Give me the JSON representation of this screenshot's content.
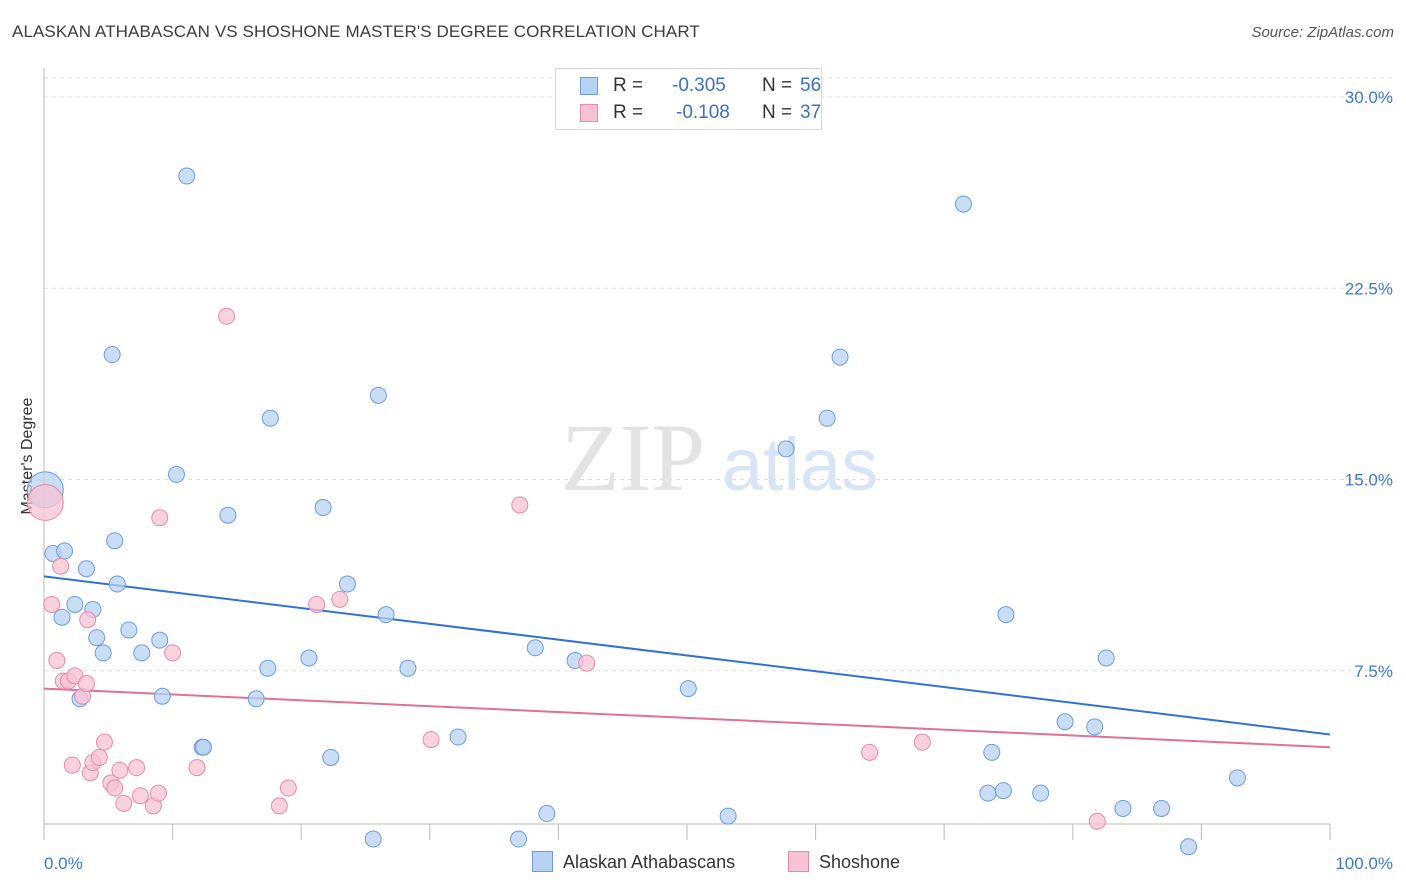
{
  "title": "ALASKAN ATHABASCAN VS SHOSHONE MASTER'S DEGREE CORRELATION CHART",
  "source": "Source: ZipAtlas.com",
  "watermark": {
    "zip": "ZIP",
    "atlas": "atlas"
  },
  "legend": {
    "r_label": "R =",
    "n_label": "N =",
    "rows": [
      {
        "r": "-0.305",
        "n": "56",
        "color": "#a9c8f0",
        "border": "#6d9be0"
      },
      {
        "r": "-0.108",
        "n": "37",
        "color": "#f8c2d3",
        "border": "#e78aa8"
      }
    ]
  },
  "colors": {
    "blue_fill": "#b7d1f2",
    "blue_stroke": "#6d9be0",
    "blue_line": "#2f72d6",
    "pink_fill": "#f7c3d3",
    "pink_stroke": "#e78aa8",
    "pink_line": "#e0709a",
    "tick_label": "#3a78d4",
    "grid": "#dddddd"
  },
  "chart_data": {
    "type": "scatter",
    "title": "ALASKAN ATHABASCAN VS SHOSHONE MASTER'S DEGREE CORRELATION CHART",
    "xlabel": "",
    "ylabel": "Master's Degree",
    "xlim": [
      0,
      100
    ],
    "ylim": [
      0,
      30
    ],
    "x_tick_labels": [
      "0.0%",
      "100.0%"
    ],
    "y_ticks": [
      7.5,
      15.0,
      22.5,
      30.0
    ],
    "y_tick_labels": [
      "7.5%",
      "15.0%",
      "22.5%",
      "30.0%"
    ],
    "grid": "horizontal dashed",
    "legend_position": "bottom-center",
    "series": [
      {
        "name": "Alaskan Athabascans",
        "trend": {
          "x": [
            0,
            100
          ],
          "y": [
            11.2,
            5.0
          ]
        },
        "points": [
          [
            0.1,
            14.6
          ],
          [
            0.7,
            12.1
          ],
          [
            1.6,
            12.2
          ],
          [
            3.3,
            11.5
          ],
          [
            1.4,
            9.6
          ],
          [
            2.4,
            10.1
          ],
          [
            3.8,
            9.9
          ],
          [
            4.1,
            8.8
          ],
          [
            4.6,
            8.2
          ],
          [
            2.8,
            6.4
          ],
          [
            5.7,
            10.9
          ],
          [
            5.5,
            12.6
          ],
          [
            5.3,
            19.9
          ],
          [
            6.6,
            9.1
          ],
          [
            7.6,
            8.2
          ],
          [
            9.0,
            8.7
          ],
          [
            9.2,
            6.5
          ],
          [
            11.1,
            26.9
          ],
          [
            10.3,
            15.2
          ],
          [
            12.3,
            4.5
          ],
          [
            12.4,
            4.5
          ],
          [
            14.3,
            13.6
          ],
          [
            16.5,
            6.4
          ],
          [
            17.4,
            7.6
          ],
          [
            17.6,
            17.4
          ],
          [
            20.6,
            8.0
          ],
          [
            21.7,
            13.9
          ],
          [
            22.3,
            4.1
          ],
          [
            23.6,
            10.9
          ],
          [
            25.6,
            0.9
          ],
          [
            26.0,
            18.3
          ],
          [
            26.6,
            9.7
          ],
          [
            28.3,
            7.6
          ],
          [
            32.2,
            4.9
          ],
          [
            36.9,
            0.9
          ],
          [
            38.2,
            8.4
          ],
          [
            39.1,
            1.9
          ],
          [
            41.3,
            7.9
          ],
          [
            50.1,
            6.8
          ],
          [
            53.2,
            1.8
          ],
          [
            57.7,
            16.2
          ],
          [
            60.9,
            17.4
          ],
          [
            61.9,
            19.8
          ],
          [
            71.5,
            25.8
          ],
          [
            73.7,
            4.3
          ],
          [
            73.4,
            2.7
          ],
          [
            74.6,
            2.8
          ],
          [
            74.8,
            9.7
          ],
          [
            77.5,
            2.7
          ],
          [
            79.4,
            5.5
          ],
          [
            81.7,
            5.3
          ],
          [
            82.6,
            8.0
          ],
          [
            83.9,
            2.1
          ],
          [
            86.9,
            2.1
          ],
          [
            89.0,
            0.6
          ],
          [
            92.8,
            3.3
          ]
        ]
      },
      {
        "name": "Shoshone",
        "trend": {
          "x": [
            0,
            100
          ],
          "y": [
            6.8,
            4.5
          ]
        },
        "points": [
          [
            0.1,
            14.1
          ],
          [
            0.6,
            10.1
          ],
          [
            1.0,
            7.9
          ],
          [
            1.3,
            11.6
          ],
          [
            1.5,
            7.1
          ],
          [
            1.9,
            7.1
          ],
          [
            2.2,
            3.8
          ],
          [
            2.4,
            7.3
          ],
          [
            3.0,
            6.5
          ],
          [
            3.3,
            7.0
          ],
          [
            3.4,
            9.5
          ],
          [
            3.6,
            3.5
          ],
          [
            3.8,
            3.9
          ],
          [
            4.3,
            4.1
          ],
          [
            4.7,
            4.7
          ],
          [
            5.2,
            3.1
          ],
          [
            5.5,
            2.9
          ],
          [
            5.9,
            3.6
          ],
          [
            6.2,
            2.3
          ],
          [
            7.2,
            3.7
          ],
          [
            7.5,
            2.6
          ],
          [
            8.5,
            2.2
          ],
          [
            8.9,
            2.7
          ],
          [
            9.0,
            13.5
          ],
          [
            10.0,
            8.2
          ],
          [
            11.9,
            3.7
          ],
          [
            14.2,
            21.4
          ],
          [
            18.3,
            2.2
          ],
          [
            19.0,
            2.9
          ],
          [
            21.2,
            10.1
          ],
          [
            23.0,
            10.3
          ],
          [
            30.1,
            4.8
          ],
          [
            37.0,
            14.0
          ],
          [
            42.2,
            7.8
          ],
          [
            64.2,
            4.3
          ],
          [
            68.3,
            4.7
          ],
          [
            81.9,
            1.6
          ]
        ]
      }
    ]
  }
}
